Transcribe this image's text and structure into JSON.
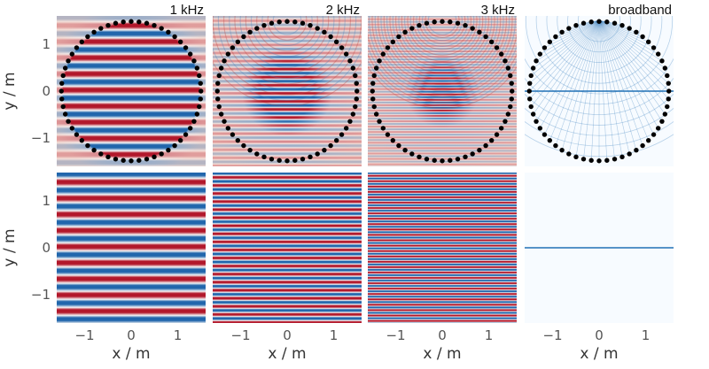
{
  "chart_data": {
    "type": "heatmap",
    "description_free": true,
    "panels": [
      {
        "row": "top",
        "col": 0,
        "title": "1 kHz",
        "kind": "pressure-field",
        "frequency_hz": 1000,
        "loudspeakers": "circle"
      },
      {
        "row": "top",
        "col": 1,
        "title": "2 kHz",
        "kind": "pressure-field",
        "frequency_hz": 2000,
        "loudspeakers": "circle"
      },
      {
        "row": "top",
        "col": 2,
        "title": "3 kHz",
        "kind": "pressure-field",
        "frequency_hz": 3000,
        "loudspeakers": "circle"
      },
      {
        "row": "top",
        "col": 3,
        "title": "broadband",
        "kind": "broadband",
        "loudspeakers": "circle"
      },
      {
        "row": "bottom",
        "col": 0,
        "title": "",
        "kind": "reference-plane-wave",
        "frequency_hz": 1000
      },
      {
        "row": "bottom",
        "col": 1,
        "title": "",
        "kind": "reference-plane-wave",
        "frequency_hz": 2000
      },
      {
        "row": "bottom",
        "col": 2,
        "title": "",
        "kind": "reference-plane-wave",
        "frequency_hz": 3000
      },
      {
        "row": "bottom",
        "col": 3,
        "title": "",
        "kind": "reference-broadband"
      }
    ],
    "xlabel": "x / m",
    "ylabel": "y / m",
    "xlim": [
      -1.6,
      1.6
    ],
    "ylim": [
      -1.6,
      1.6
    ],
    "xticks": [
      -1,
      0,
      1
    ],
    "yticks": [
      -1,
      0,
      1
    ],
    "x_tick_labels": [
      "−1",
      "0",
      "1"
    ],
    "y_tick_labels": [
      "−1",
      "0",
      "1"
    ],
    "array_radius_m": 1.5,
    "num_loudspeakers": 56,
    "colormap": {
      "negative": "#2166ac",
      "zero": "#f7f7f7",
      "positive": "#b2182b"
    },
    "broadband_colormap": {
      "low": "#f7fbff",
      "high": "#2171b5"
    }
  }
}
